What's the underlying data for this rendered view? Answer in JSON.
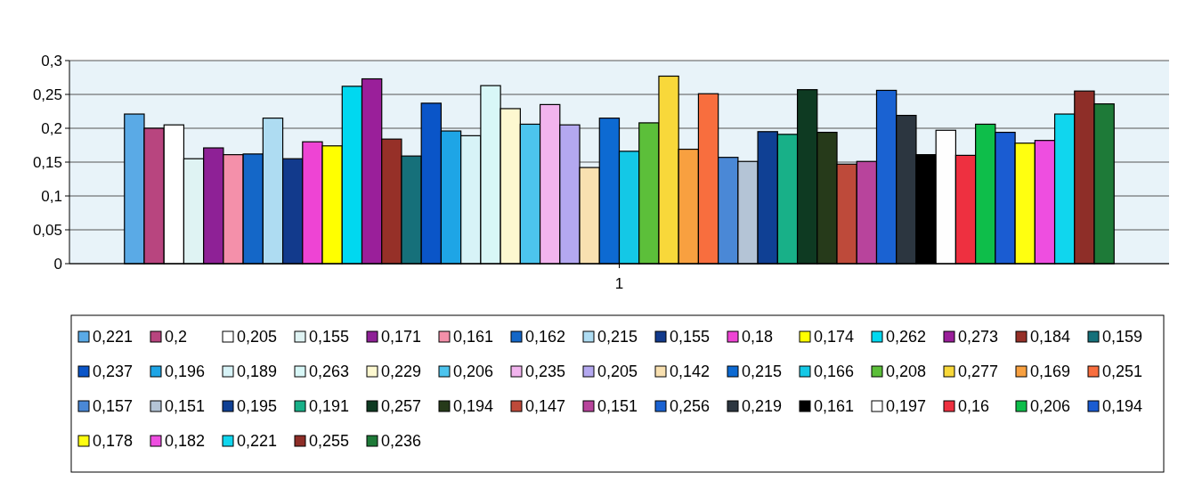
{
  "chart_data": {
    "type": "bar",
    "categories": [
      "1"
    ],
    "ylim": [
      0,
      0.3
    ],
    "yticks": [
      {
        "value": 0,
        "label": "0"
      },
      {
        "value": 0.05,
        "label": "0,05"
      },
      {
        "value": 0.1,
        "label": "0,1"
      },
      {
        "value": 0.15,
        "label": "0,15"
      },
      {
        "value": 0.2,
        "label": "0,2"
      },
      {
        "value": 0.25,
        "label": "0,25"
      },
      {
        "value": 0.3,
        "label": "0,3"
      }
    ],
    "grid": "y",
    "legend": "bottom",
    "series": [
      {
        "name": "0,221",
        "color": "#5aaae6",
        "values": [
          0.221
        ]
      },
      {
        "name": "0,2",
        "color": "#b8457f",
        "values": [
          0.2
        ]
      },
      {
        "name": "0,205",
        "color": "#ffffff",
        "values": [
          0.205
        ]
      },
      {
        "name": "0,155",
        "color": "#dff3f3",
        "values": [
          0.155
        ]
      },
      {
        "name": "0,171",
        "color": "#8e2196",
        "values": [
          0.171
        ]
      },
      {
        "name": "0,161",
        "color": "#f490aa",
        "values": [
          0.161
        ]
      },
      {
        "name": "0,162",
        "color": "#1467c8",
        "values": [
          0.162
        ]
      },
      {
        "name": "0,215",
        "color": "#aedcf2",
        "values": [
          0.215
        ]
      },
      {
        "name": "0,155",
        "color": "#123a8c",
        "values": [
          0.155
        ]
      },
      {
        "name": "0,18",
        "color": "#ee44d4",
        "values": [
          0.18
        ]
      },
      {
        "name": "0,174",
        "color": "#ffff00",
        "values": [
          0.174
        ]
      },
      {
        "name": "0,262",
        "color": "#00d8f0",
        "values": [
          0.262
        ]
      },
      {
        "name": "0,273",
        "color": "#9a1f9a",
        "values": [
          0.273
        ]
      },
      {
        "name": "0,184",
        "color": "#963028",
        "values": [
          0.184
        ]
      },
      {
        "name": "0,159",
        "color": "#16707a",
        "values": [
          0.159
        ]
      },
      {
        "name": "0,237",
        "color": "#0a55c8",
        "values": [
          0.237
        ]
      },
      {
        "name": "0,196",
        "color": "#1ea5e6",
        "values": [
          0.196
        ]
      },
      {
        "name": "0,189",
        "color": "#d7f3f7",
        "values": [
          0.189
        ]
      },
      {
        "name": "0,263",
        "color": "#d8f7f7",
        "values": [
          0.263
        ]
      },
      {
        "name": "0,229",
        "color": "#fdf8d0",
        "values": [
          0.229
        ]
      },
      {
        "name": "0,206",
        "color": "#4cc4ee",
        "values": [
          0.206
        ]
      },
      {
        "name": "0,235",
        "color": "#f2b4ee",
        "values": [
          0.235
        ]
      },
      {
        "name": "0,205",
        "color": "#b4a8f0",
        "values": [
          0.205
        ]
      },
      {
        "name": "0,142",
        "color": "#f8e0b0",
        "values": [
          0.142
        ]
      },
      {
        "name": "0,215",
        "color": "#0d6ad2",
        "values": [
          0.215
        ]
      },
      {
        "name": "0,166",
        "color": "#14c8e6",
        "values": [
          0.166
        ]
      },
      {
        "name": "0,208",
        "color": "#5cbf3a",
        "values": [
          0.208
        ]
      },
      {
        "name": "0,277",
        "color": "#f8d83a",
        "values": [
          0.277
        ]
      },
      {
        "name": "0,169",
        "color": "#f8a040",
        "values": [
          0.169
        ]
      },
      {
        "name": "0,251",
        "color": "#f86e3e",
        "values": [
          0.251
        ]
      },
      {
        "name": "0,157",
        "color": "#4a88d6",
        "values": [
          0.157
        ]
      },
      {
        "name": "0,151",
        "color": "#b4c4d6",
        "values": [
          0.151
        ]
      },
      {
        "name": "0,195",
        "color": "#0f4094",
        "values": [
          0.195
        ]
      },
      {
        "name": "0,191",
        "color": "#18b088",
        "values": [
          0.191
        ]
      },
      {
        "name": "0,257",
        "color": "#0e3a22",
        "values": [
          0.257
        ]
      },
      {
        "name": "0,194",
        "color": "#263a1a",
        "values": [
          0.194
        ]
      },
      {
        "name": "0,147",
        "color": "#be4a3a",
        "values": [
          0.147
        ]
      },
      {
        "name": "0,151",
        "color": "#b8449c",
        "values": [
          0.151
        ]
      },
      {
        "name": "0,256",
        "color": "#1a62d2",
        "values": [
          0.256
        ]
      },
      {
        "name": "0,219",
        "color": "#2c3640",
        "values": [
          0.219
        ]
      },
      {
        "name": "0,161",
        "color": "#000000",
        "values": [
          0.161
        ]
      },
      {
        "name": "0,197",
        "color": "#fefefe",
        "values": [
          0.197
        ]
      },
      {
        "name": "0,16",
        "color": "#ee3040",
        "values": [
          0.16
        ]
      },
      {
        "name": "0,206",
        "color": "#0ebe4a",
        "values": [
          0.206
        ]
      },
      {
        "name": "0,194",
        "color": "#1a5cd2",
        "values": [
          0.194
        ]
      },
      {
        "name": "0,178",
        "color": "#ffff10",
        "values": [
          0.178
        ]
      },
      {
        "name": "0,182",
        "color": "#ee4ee0",
        "values": [
          0.182
        ]
      },
      {
        "name": "0,221",
        "color": "#10d6ee",
        "values": [
          0.221
        ]
      },
      {
        "name": "0,255",
        "color": "#8e2e28",
        "values": [
          0.255
        ]
      },
      {
        "name": "0,236",
        "color": "#1e7a38",
        "values": [
          0.236
        ]
      }
    ]
  }
}
